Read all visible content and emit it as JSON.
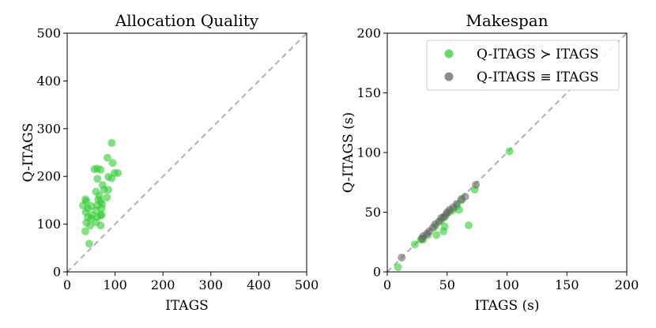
{
  "chart_data": [
    {
      "type": "scatter",
      "title": "Allocation Quality",
      "xlabel": "ITAGS",
      "ylabel": "Q-ITAGS",
      "xlim": [
        0,
        500
      ],
      "ylim": [
        0,
        500
      ],
      "xticks": [
        "0",
        "100",
        "200",
        "300",
        "400",
        "500"
      ],
      "yticks": [
        "0",
        "100",
        "200",
        "300",
        "400",
        "500"
      ],
      "reference_line": "y = x (dashed gray)",
      "series": [
        {
          "name": "Q-ITAGS ≻ ITAGS",
          "color": "#33cc33",
          "points": [
            [
              93,
              270
            ],
            [
              84,
              239
            ],
            [
              95,
              228
            ],
            [
              99,
              207
            ],
            [
              106,
              207
            ],
            [
              93,
              196
            ],
            [
              86,
              199
            ],
            [
              57,
              215
            ],
            [
              63,
              216
            ],
            [
              70,
              214
            ],
            [
              74,
              182
            ],
            [
              63,
              195
            ],
            [
              86,
              172
            ],
            [
              77,
              172
            ],
            [
              60,
              168
            ],
            [
              67,
              160
            ],
            [
              65,
              152
            ],
            [
              83,
              156
            ],
            [
              38,
              152
            ],
            [
              40,
              148
            ],
            [
              70,
              148
            ],
            [
              73,
              142
            ],
            [
              33,
              139
            ],
            [
              50,
              138
            ],
            [
              63,
              140
            ],
            [
              43,
              133
            ],
            [
              72,
              133
            ],
            [
              60,
              129
            ],
            [
              39,
              125
            ],
            [
              72,
              120
            ],
            [
              52,
              119
            ],
            [
              70,
              118
            ],
            [
              63,
              115
            ],
            [
              43,
              114
            ],
            [
              50,
              112
            ],
            [
              40,
              103
            ],
            [
              60,
              104
            ],
            [
              70,
              97
            ],
            [
              48,
              97
            ],
            [
              38,
              85
            ],
            [
              46,
              59
            ]
          ]
        }
      ]
    },
    {
      "type": "scatter",
      "title": "Makespan",
      "xlabel": "ITAGS (s)",
      "ylabel": "Q-ITAGS (s)",
      "xlim": [
        0,
        200
      ],
      "ylim": [
        0,
        200
      ],
      "xticks": [
        "0",
        "50",
        "100",
        "150",
        "200"
      ],
      "yticks": [
        "0",
        "50",
        "100",
        "150",
        "200"
      ],
      "reference_line": "y = x (dashed gray)",
      "legend_position": "upper right",
      "series": [
        {
          "name": "Q-ITAGS ≻ ITAGS",
          "color": "#33cc33",
          "points": [
            [
              102,
              101
            ],
            [
              73,
              69
            ],
            [
              68,
              39
            ],
            [
              62,
              60
            ],
            [
              58,
              55
            ],
            [
              60,
              52
            ],
            [
              55,
              52
            ],
            [
              52,
              50
            ],
            [
              48,
              46
            ],
            [
              45,
              43
            ],
            [
              48,
              38
            ],
            [
              40,
              38
            ],
            [
              47,
              34
            ],
            [
              41,
              31
            ],
            [
              34,
              31
            ],
            [
              30,
              27
            ],
            [
              28,
              27
            ],
            [
              23,
              23
            ],
            [
              9,
              4
            ]
          ]
        },
        {
          "name": "Q-ITAGS ≡ ITAGS",
          "color": "#666666",
          "points": [
            [
              74,
              73
            ],
            [
              65,
              63
            ],
            [
              62,
              61
            ],
            [
              58,
              57
            ],
            [
              55,
              54
            ],
            [
              52,
              52
            ],
            [
              50,
              50
            ],
            [
              49,
              48
            ],
            [
              47,
              46
            ],
            [
              45,
              45
            ],
            [
              43,
              42
            ],
            [
              40,
              40
            ],
            [
              38,
              37
            ],
            [
              35,
              34
            ],
            [
              33,
              32
            ],
            [
              30,
              30
            ],
            [
              29,
              28
            ],
            [
              12,
              12
            ]
          ]
        }
      ]
    }
  ]
}
